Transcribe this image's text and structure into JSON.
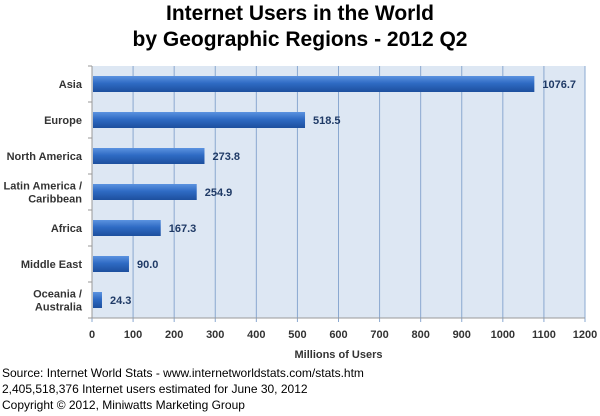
{
  "chart_data": {
    "type": "bar",
    "orientation": "horizontal",
    "title": "Internet Users in the World",
    "subtitle": "by Geographic Regions - 2012 Q2",
    "xlabel": "Millions of Users",
    "ylabel": "",
    "categories": [
      "Asia",
      "Europe",
      "North America",
      "Latin America / Caribbean",
      "Africa",
      "Middle East",
      "Oceania  / Australia"
    ],
    "category_lines": [
      [
        "Asia"
      ],
      [
        "Europe"
      ],
      [
        "North America"
      ],
      [
        "Latin America /",
        "Caribbean"
      ],
      [
        "Africa"
      ],
      [
        "Middle East"
      ],
      [
        "Oceania  /",
        "Australia"
      ]
    ],
    "values": [
      1076.7,
      518.5,
      273.8,
      254.9,
      167.3,
      90.0,
      24.3
    ],
    "data_labels": [
      "1076.7",
      "518.5",
      "273.8",
      "254.9",
      "167.3",
      "90.0",
      "24.3"
    ],
    "xlim": [
      0,
      1200
    ],
    "xticks": [
      0,
      100,
      200,
      300,
      400,
      500,
      600,
      700,
      800,
      900,
      1000,
      1100,
      1200
    ],
    "grid": true,
    "colors": {
      "bar": "#2f6bc4",
      "plot_bg": "#dde7f3",
      "grid": "#8aa8d0",
      "label": "#1f3a66"
    }
  },
  "footer": {
    "source": "Source: Internet World Stats - www.internetworldstats.com/stats.htm",
    "estimate": "2,405,518,376 Internet users estimated for June 30, 2012",
    "copyright": "Copyright © 2012, Miniwatts Marketing Group"
  }
}
